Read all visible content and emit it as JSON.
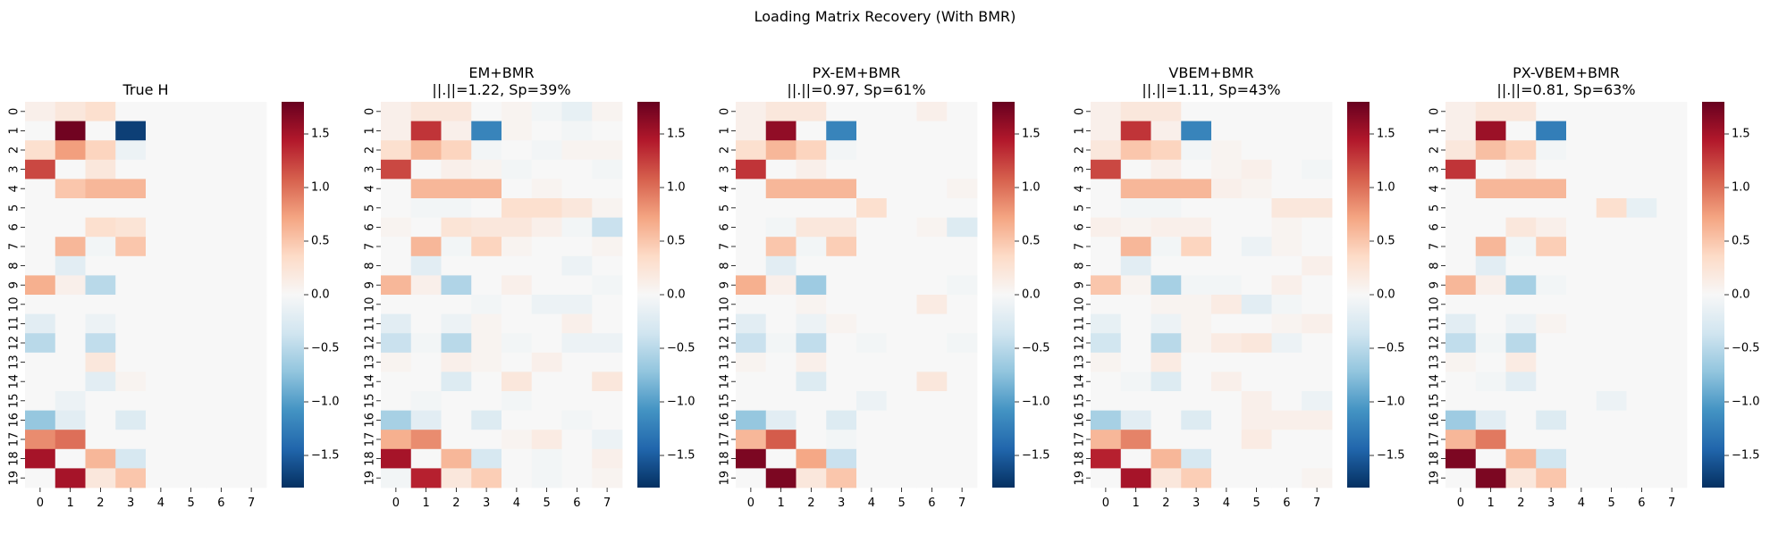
{
  "figure": {
    "suptitle": "Loading Matrix Recovery (With BMR)"
  },
  "colorbar": {
    "vmin": -1.8,
    "vmax": 1.8,
    "ticks": [
      1.5,
      1.0,
      0.5,
      0.0,
      -0.5,
      -1.0,
      -1.5
    ],
    "tick_labels": [
      "1.5",
      "1.0",
      "0.5",
      "0.0",
      "−0.5",
      "−1.0",
      "−1.5"
    ],
    "colormap": "RdBu_r",
    "stops": [
      "#053061",
      "#2166ac",
      "#4393c3",
      "#92c5de",
      "#d1e5f0",
      "#f7f7f7",
      "#fddbc7",
      "#f4a582",
      "#d6604d",
      "#b2182b",
      "#67001f"
    ]
  },
  "chart_data": [
    {
      "type": "heatmap",
      "title": "True H",
      "subtitle": "",
      "x_ticks": [
        "0",
        "1",
        "2",
        "3",
        "4",
        "5",
        "6",
        "7"
      ],
      "y_ticks": [
        "0",
        "1",
        "2",
        "3",
        "4",
        "5",
        "6",
        "7",
        "8",
        "9",
        "10",
        "11",
        "12",
        "13",
        "14",
        "15",
        "16",
        "17",
        "18",
        "19"
      ],
      "values": [
        [
          0.1,
          0.2,
          0.3,
          0,
          0,
          0,
          0,
          0
        ],
        [
          0,
          1.75,
          0,
          -1.7,
          0,
          0,
          0,
          0
        ],
        [
          0.3,
          0.75,
          0.4,
          -0.1,
          0,
          0,
          0,
          0
        ],
        [
          1.2,
          0,
          0.2,
          0,
          0,
          0,
          0,
          0
        ],
        [
          0,
          0.5,
          0.6,
          0.6,
          0,
          0,
          0,
          0
        ],
        [
          0,
          0,
          0,
          0,
          0,
          0,
          0,
          0
        ],
        [
          0,
          0,
          0.3,
          0.25,
          0,
          0,
          0,
          0
        ],
        [
          0,
          0.6,
          -0.05,
          0.5,
          0,
          0,
          0,
          0
        ],
        [
          0,
          -0.2,
          0,
          0,
          0,
          0,
          0,
          0
        ],
        [
          0.65,
          0.1,
          -0.5,
          0,
          0,
          0,
          0,
          0
        ],
        [
          0,
          0,
          0,
          0,
          0,
          0,
          0,
          0
        ],
        [
          -0.2,
          0,
          -0.1,
          0,
          0,
          0,
          0,
          0
        ],
        [
          -0.5,
          0,
          -0.45,
          0,
          0,
          0,
          0,
          0
        ],
        [
          0,
          0,
          0.2,
          0,
          0,
          0,
          0,
          0
        ],
        [
          0,
          0,
          -0.2,
          0.05,
          0,
          0,
          0,
          0
        ],
        [
          0,
          -0.1,
          0,
          0,
          0,
          0,
          0,
          0
        ],
        [
          -0.7,
          -0.2,
          0,
          -0.25,
          0,
          0,
          0,
          0
        ],
        [
          0.85,
          1.0,
          0,
          0,
          0,
          0,
          0,
          0
        ],
        [
          1.5,
          0,
          0.6,
          -0.3,
          0,
          0,
          0,
          0
        ],
        [
          0,
          1.5,
          0.2,
          0.5,
          0,
          0,
          0,
          0
        ]
      ]
    },
    {
      "type": "heatmap",
      "title": "EM+BMR",
      "subtitle": "||.||=1.22, Sp=39%",
      "x_ticks": [
        "0",
        "1",
        "2",
        "3",
        "4",
        "5",
        "6",
        "7"
      ],
      "y_ticks": [
        "0",
        "1",
        "2",
        "3",
        "4",
        "5",
        "6",
        "7",
        "8",
        "9",
        "10",
        "11",
        "12",
        "13",
        "14",
        "15",
        "16",
        "17",
        "18",
        "19"
      ],
      "values": [
        [
          0.1,
          0.2,
          0.2,
          0,
          0.05,
          -0.05,
          -0.15,
          0.05
        ],
        [
          0.1,
          1.3,
          0.1,
          -1.2,
          0.05,
          0,
          -0.05,
          0
        ],
        [
          0.3,
          0.6,
          0.4,
          -0.05,
          0,
          -0.05,
          0.05,
          0.05
        ],
        [
          1.2,
          0,
          0.1,
          0.05,
          -0.05,
          0,
          0,
          -0.05
        ],
        [
          0,
          0.6,
          0.6,
          0.6,
          0,
          0.05,
          0,
          0
        ],
        [
          0,
          -0.05,
          -0.05,
          0,
          0.3,
          0.3,
          0.2,
          0.05
        ],
        [
          0.05,
          0,
          0.25,
          0.2,
          0.2,
          0.1,
          -0.05,
          -0.4
        ],
        [
          0,
          0.6,
          -0.05,
          0.4,
          0.05,
          0,
          0,
          0.05
        ],
        [
          0,
          -0.2,
          0,
          0,
          0,
          0,
          -0.1,
          0
        ],
        [
          0.6,
          0.1,
          -0.55,
          0,
          0.1,
          0,
          0,
          -0.05
        ],
        [
          0,
          0,
          0,
          -0.05,
          0,
          -0.1,
          -0.1,
          0
        ],
        [
          -0.2,
          0,
          -0.1,
          0.05,
          0,
          0,
          0.1,
          0
        ],
        [
          -0.4,
          -0.05,
          -0.5,
          0.05,
          -0.05,
          0,
          -0.1,
          -0.1
        ],
        [
          0.05,
          0,
          0.1,
          0.05,
          0,
          0.1,
          0,
          0
        ],
        [
          0,
          0,
          -0.25,
          0,
          0.2,
          0,
          0,
          0.2
        ],
        [
          0,
          -0.05,
          0,
          0,
          -0.05,
          0,
          0,
          0
        ],
        [
          -0.6,
          -0.2,
          0,
          -0.25,
          0,
          0,
          -0.05,
          0
        ],
        [
          0.65,
          0.85,
          0,
          0,
          0.05,
          0.15,
          0,
          -0.1
        ],
        [
          1.5,
          0,
          0.6,
          -0.3,
          0,
          -0.05,
          0,
          0.1
        ],
        [
          -0.05,
          1.4,
          0.2,
          0.45,
          0,
          -0.05,
          0,
          0.05
        ]
      ]
    },
    {
      "type": "heatmap",
      "title": "PX-EM+BMR",
      "subtitle": "||.||=0.97, Sp=61%",
      "x_ticks": [
        "0",
        "1",
        "2",
        "3",
        "4",
        "5",
        "6",
        "7"
      ],
      "y_ticks": [
        "0",
        "1",
        "2",
        "3",
        "4",
        "5",
        "6",
        "7",
        "8",
        "9",
        "10",
        "11",
        "12",
        "13",
        "14",
        "15",
        "16",
        "17",
        "18",
        "19"
      ],
      "values": [
        [
          0.1,
          0.2,
          0.2,
          0,
          0,
          0,
          0.1,
          0
        ],
        [
          0.1,
          1.6,
          0,
          -1.2,
          0,
          0,
          0,
          0
        ],
        [
          0.3,
          0.6,
          0.4,
          -0.05,
          0,
          0,
          0,
          0
        ],
        [
          1.3,
          0,
          0.1,
          0,
          0,
          0,
          0,
          0
        ],
        [
          0,
          0.6,
          0.6,
          0.6,
          0,
          0,
          0,
          0.05
        ],
        [
          0,
          0,
          0,
          0,
          0.3,
          0,
          0,
          0
        ],
        [
          0,
          -0.05,
          0.2,
          0.2,
          0,
          0,
          0.05,
          -0.25
        ],
        [
          0,
          0.5,
          -0.05,
          0.45,
          0,
          0,
          0,
          0
        ],
        [
          0,
          -0.2,
          0,
          0,
          0,
          0,
          0,
          0
        ],
        [
          0.65,
          0.1,
          -0.65,
          0,
          0,
          0,
          0,
          -0.05
        ],
        [
          0,
          0,
          0.05,
          0,
          0,
          0,
          0.15,
          0
        ],
        [
          -0.2,
          0,
          -0.1,
          0.05,
          0,
          0,
          0,
          0
        ],
        [
          -0.4,
          -0.05,
          -0.45,
          0,
          -0.05,
          0,
          0,
          -0.05
        ],
        [
          0.05,
          0,
          0.1,
          0,
          0,
          0,
          0,
          0
        ],
        [
          0,
          0,
          -0.25,
          0,
          0,
          0,
          0.2,
          0
        ],
        [
          0,
          0,
          0,
          0,
          -0.1,
          0,
          0,
          0
        ],
        [
          -0.7,
          -0.2,
          0,
          -0.25,
          0,
          0,
          0,
          0
        ],
        [
          0.6,
          1.1,
          0,
          -0.05,
          0,
          0,
          0,
          0
        ],
        [
          1.7,
          0,
          0.7,
          -0.4,
          0,
          0,
          0,
          0
        ],
        [
          0,
          1.7,
          0.2,
          0.5,
          0,
          0,
          0,
          0
        ]
      ]
    },
    {
      "type": "heatmap",
      "title": "VBEM+BMR",
      "subtitle": "||.||=1.11, Sp=43%",
      "x_ticks": [
        "0",
        "1",
        "2",
        "3",
        "4",
        "5",
        "6",
        "7"
      ],
      "y_ticks": [
        "0",
        "1",
        "2",
        "3",
        "4",
        "5",
        "6",
        "7",
        "8",
        "9",
        "10",
        "11",
        "12",
        "13",
        "14",
        "15",
        "16",
        "17",
        "18",
        "19"
      ],
      "values": [
        [
          0.1,
          0.2,
          0.2,
          0,
          0,
          0,
          0,
          0
        ],
        [
          0.1,
          1.3,
          0.1,
          -1.2,
          0,
          0,
          0,
          0
        ],
        [
          0.2,
          0.5,
          0.4,
          -0.05,
          0.05,
          0,
          0,
          0
        ],
        [
          1.2,
          0,
          0.1,
          0,
          0.05,
          0.1,
          0,
          -0.05
        ],
        [
          0,
          0.6,
          0.6,
          0.6,
          0.1,
          0.05,
          0,
          0
        ],
        [
          0,
          -0.05,
          -0.05,
          0,
          0,
          0,
          0.2,
          0.2
        ],
        [
          0.1,
          0.05,
          0.1,
          0.1,
          0,
          0,
          0.05,
          0
        ],
        [
          0,
          0.6,
          -0.05,
          0.4,
          0,
          -0.1,
          0.05,
          0
        ],
        [
          0,
          -0.2,
          0,
          0,
          0,
          0,
          0,
          0.1
        ],
        [
          0.5,
          0.05,
          -0.6,
          -0.05,
          -0.05,
          0,
          0.1,
          0
        ],
        [
          0,
          0,
          0.05,
          0.05,
          0.15,
          -0.2,
          -0.05,
          0
        ],
        [
          -0.15,
          0,
          -0.1,
          0.05,
          0,
          0,
          0.05,
          0.1
        ],
        [
          -0.35,
          0,
          -0.5,
          0.05,
          0.15,
          0.2,
          -0.1,
          0
        ],
        [
          0.05,
          0,
          0.15,
          0,
          0,
          0,
          0,
          0
        ],
        [
          0,
          -0.05,
          -0.25,
          0,
          0.1,
          0,
          0,
          0
        ],
        [
          0,
          0,
          0,
          0,
          0,
          0.1,
          0,
          -0.1
        ],
        [
          -0.6,
          -0.2,
          0,
          -0.25,
          0,
          0.1,
          0.1,
          0.1
        ],
        [
          0.6,
          0.9,
          0,
          0,
          0,
          0.15,
          0,
          0
        ],
        [
          1.4,
          0,
          0.6,
          -0.3,
          0,
          0,
          0,
          0
        ],
        [
          0,
          1.5,
          0.2,
          0.45,
          0,
          0,
          0,
          0.05
        ]
      ]
    },
    {
      "type": "heatmap",
      "title": "PX-VBEM+BMR",
      "subtitle": "||.||=0.81, Sp=63%",
      "x_ticks": [
        "0",
        "1",
        "2",
        "3",
        "4",
        "5",
        "6",
        "7"
      ],
      "y_ticks": [
        "0",
        "1",
        "2",
        "3",
        "4",
        "5",
        "6",
        "7",
        "8",
        "9",
        "10",
        "11",
        "12",
        "13",
        "14",
        "15",
        "16",
        "17",
        "18",
        "19"
      ],
      "values": [
        [
          0.1,
          0.2,
          0.2,
          0,
          0,
          0,
          0,
          0
        ],
        [
          0.1,
          1.55,
          0,
          -1.25,
          0,
          0,
          0,
          0
        ],
        [
          0.2,
          0.55,
          0.4,
          -0.05,
          0,
          0,
          0,
          0
        ],
        [
          1.3,
          0,
          0.1,
          0,
          0,
          0,
          0,
          0
        ],
        [
          0,
          0.6,
          0.6,
          0.6,
          0,
          0,
          0,
          0
        ],
        [
          0,
          0,
          0,
          0,
          0,
          0.3,
          -0.15,
          0
        ],
        [
          0,
          0,
          0.2,
          0.1,
          0,
          0,
          0,
          0
        ],
        [
          0,
          0.6,
          -0.05,
          0.45,
          0,
          0,
          0,
          0
        ],
        [
          0,
          -0.2,
          0,
          0,
          0,
          0,
          0,
          0
        ],
        [
          0.6,
          0.1,
          -0.6,
          -0.05,
          0,
          0,
          0,
          0
        ],
        [
          0,
          0,
          0,
          0,
          0,
          0,
          0,
          0
        ],
        [
          -0.2,
          0,
          -0.1,
          0.05,
          0,
          0,
          0,
          0
        ],
        [
          -0.45,
          -0.05,
          -0.5,
          0,
          0,
          0,
          0,
          0
        ],
        [
          0.05,
          0,
          0.15,
          0,
          0,
          0,
          0,
          0
        ],
        [
          0,
          -0.05,
          -0.2,
          0,
          0,
          0,
          0,
          0
        ],
        [
          0,
          0,
          0,
          0,
          0,
          -0.1,
          0,
          0
        ],
        [
          -0.65,
          -0.2,
          0,
          -0.25,
          0,
          0,
          0,
          0
        ],
        [
          0.6,
          0.95,
          0,
          0,
          0,
          0,
          0,
          0
        ],
        [
          1.7,
          0,
          0.6,
          -0.35,
          0,
          0,
          0,
          0
        ],
        [
          0,
          1.7,
          0.2,
          0.5,
          0,
          0,
          0,
          0
        ]
      ]
    }
  ]
}
